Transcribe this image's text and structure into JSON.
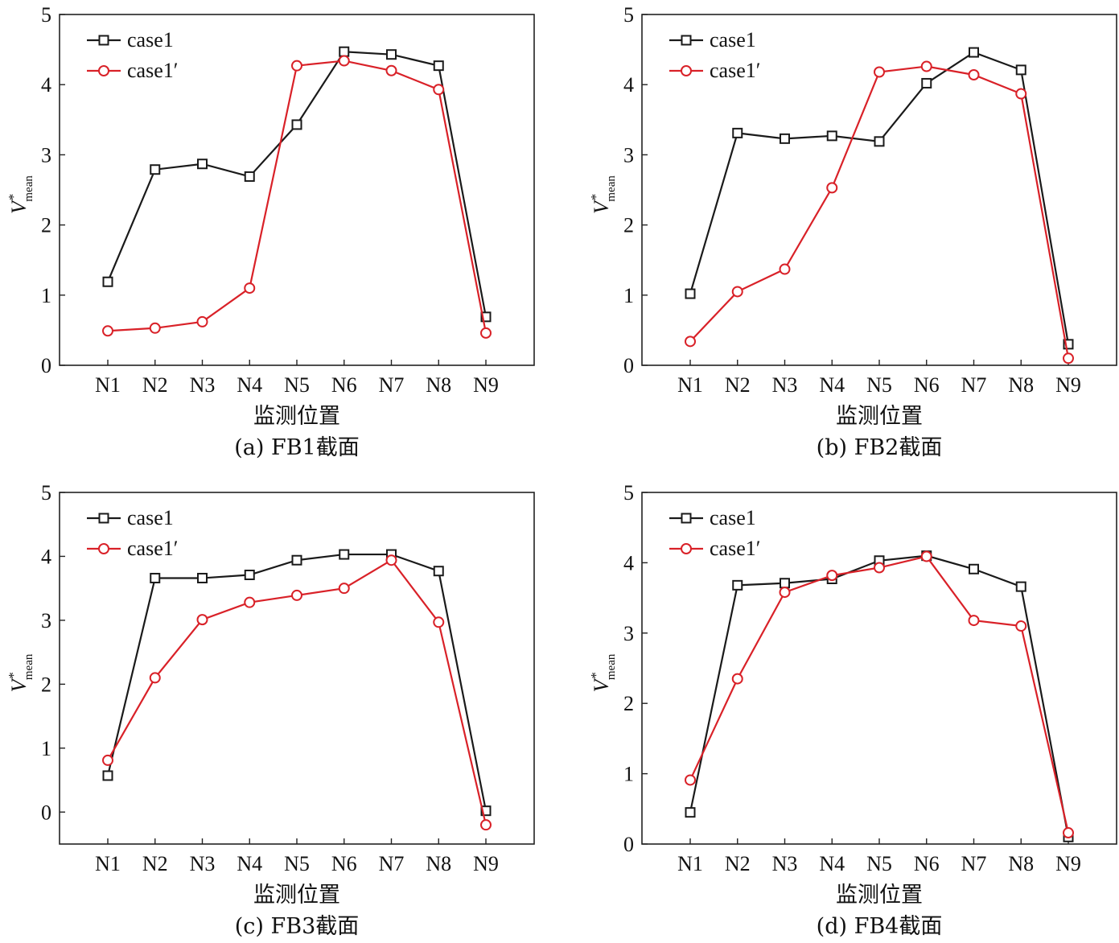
{
  "chart_data": [
    {
      "type": "line",
      "caption": "(a) FB1截面",
      "xlabel": "监测位置",
      "ylabel": {
        "base": "V",
        "sup": "*",
        "sub": "mean"
      },
      "categories": [
        "N1",
        "N2",
        "N3",
        "N4",
        "N5",
        "N6",
        "N7",
        "N8",
        "N9"
      ],
      "ylim": [
        0,
        5
      ],
      "yticks": [
        "0",
        "1",
        "2",
        "3",
        "4",
        "5"
      ],
      "legend_position": "top-left",
      "series": [
        {
          "name": "case1",
          "color": "#1a1a1a",
          "marker": "square",
          "values": [
            1.19,
            2.79,
            2.87,
            2.69,
            3.43,
            4.47,
            4.43,
            4.27,
            0.69
          ]
        },
        {
          "name": "case1′",
          "color": "#d92128",
          "marker": "circle",
          "values": [
            0.49,
            0.53,
            0.62,
            1.1,
            4.27,
            4.34,
            4.2,
            3.93,
            0.46
          ]
        }
      ]
    },
    {
      "type": "line",
      "caption": "(b) FB2截面",
      "xlabel": "监测位置",
      "ylabel": {
        "base": "V",
        "sup": "*",
        "sub": "mean"
      },
      "categories": [
        "N1",
        "N2",
        "N3",
        "N4",
        "N5",
        "N6",
        "N7",
        "N8",
        "N9"
      ],
      "ylim": [
        0,
        5
      ],
      "yticks": [
        "0",
        "1",
        "2",
        "3",
        "4",
        "5"
      ],
      "legend_position": "top-left",
      "series": [
        {
          "name": "case1",
          "color": "#1a1a1a",
          "marker": "square",
          "values": [
            1.02,
            3.31,
            3.23,
            3.27,
            3.19,
            4.02,
            4.46,
            4.21,
            0.3
          ]
        },
        {
          "name": "case1′",
          "color": "#d92128",
          "marker": "circle",
          "values": [
            0.34,
            1.05,
            1.37,
            2.53,
            4.18,
            4.26,
            4.14,
            3.87,
            0.1
          ]
        }
      ]
    },
    {
      "type": "line",
      "caption": "(c) FB3截面",
      "xlabel": "监测位置",
      "ylabel": {
        "base": "V",
        "sup": "*",
        "sub": "mean"
      },
      "categories": [
        "N1",
        "N2",
        "N3",
        "N4",
        "N5",
        "N6",
        "N7",
        "N8",
        "N9"
      ],
      "ylim": [
        -0.5,
        5
      ],
      "yticks": [
        "0",
        "1",
        "2",
        "3",
        "4",
        "5"
      ],
      "legend_position": "top-left",
      "series": [
        {
          "name": "case1",
          "color": "#1a1a1a",
          "marker": "square",
          "values": [
            0.57,
            3.66,
            3.66,
            3.71,
            3.94,
            4.03,
            4.03,
            3.77,
            0.02
          ]
        },
        {
          "name": "case1′",
          "color": "#d92128",
          "marker": "circle",
          "values": [
            0.81,
            2.1,
            3.01,
            3.28,
            3.39,
            3.5,
            3.94,
            2.97,
            -0.2
          ]
        }
      ]
    },
    {
      "type": "line",
      "caption": "(d) FB4截面",
      "xlabel": "监测位置",
      "ylabel": {
        "base": "V",
        "sup": "*",
        "sub": "mean"
      },
      "categories": [
        "N1",
        "N2",
        "N3",
        "N4",
        "N5",
        "N6",
        "N7",
        "N8",
        "N9"
      ],
      "ylim": [
        0,
        5
      ],
      "yticks": [
        "0",
        "1",
        "2",
        "3",
        "4",
        "5"
      ],
      "legend_position": "top-left",
      "series": [
        {
          "name": "case1",
          "color": "#1a1a1a",
          "marker": "square",
          "values": [
            0.45,
            3.68,
            3.71,
            3.77,
            4.03,
            4.1,
            3.91,
            3.66,
            0.1
          ]
        },
        {
          "name": "case1′",
          "color": "#d92128",
          "marker": "circle",
          "values": [
            0.91,
            2.35,
            3.58,
            3.82,
            3.93,
            4.09,
            3.18,
            3.1,
            0.16
          ]
        }
      ]
    }
  ]
}
